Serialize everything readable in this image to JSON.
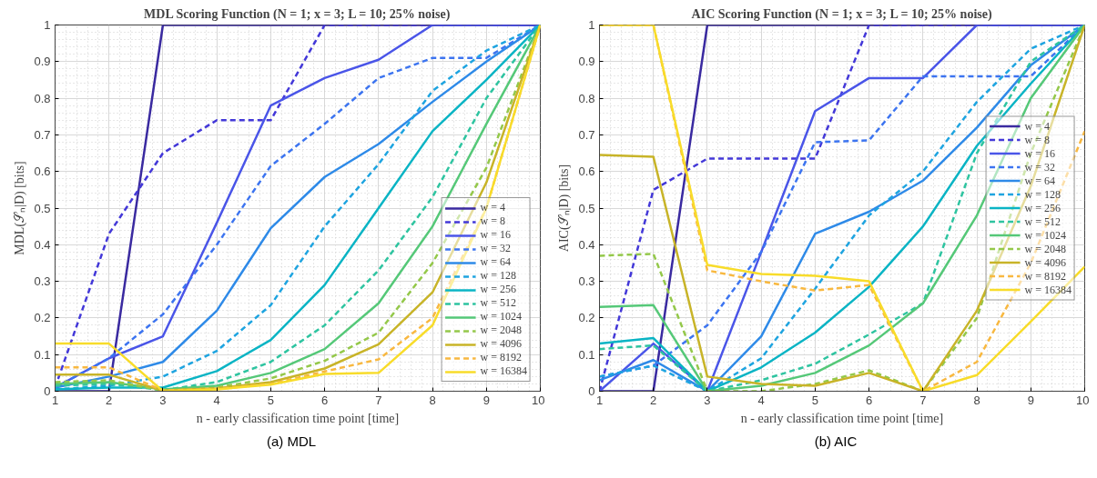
{
  "chart_data": [
    {
      "type": "line",
      "title": "MDL Scoring Function (N = 1; x = 3; L = 10; 25% noise)",
      "xlabel": "n - early classification time point [time]",
      "ylabel": "MDL(𝒮ₙ|D) [bits]",
      "annotations": [
        "(a)  MDL"
      ],
      "x": [
        1,
        2,
        3,
        4,
        5,
        6,
        7,
        8,
        9,
        10
      ],
      "xlim": [
        1,
        10
      ],
      "ylim": [
        0,
        1
      ],
      "xticks": [
        1,
        2,
        3,
        4,
        5,
        6,
        7,
        8,
        9,
        10
      ],
      "yticks": [
        0,
        0.1,
        0.2,
        0.3,
        0.4,
        0.5,
        0.6,
        0.7,
        0.8,
        0.9,
        1
      ],
      "grid": true,
      "legend": "bottom right",
      "series": [
        {
          "name": "w = 4",
          "color": "#3a2aa0",
          "line_style": "solid",
          "values": [
            0,
            0,
            1,
            1,
            1,
            1,
            1,
            1,
            1,
            1
          ]
        },
        {
          "name": "w = 8",
          "color": "#4338d8",
          "line_style": "dashed",
          "values": [
            0.01,
            0.43,
            0.65,
            0.74,
            0.74,
            1,
            1,
            1,
            1,
            1
          ]
        },
        {
          "name": "w = 16",
          "color": "#4a55e8",
          "line_style": "solid",
          "values": [
            0.01,
            0.09,
            0.15,
            0.46,
            0.78,
            0.855,
            0.905,
            1,
            1,
            1
          ]
        },
        {
          "name": "w = 32",
          "color": "#3c74f0",
          "line_style": "dashed",
          "values": [
            0.01,
            0.09,
            0.21,
            0.4,
            0.615,
            0.73,
            0.855,
            0.91,
            0.91,
            1
          ]
        },
        {
          "name": "w = 64",
          "color": "#2e8ae8",
          "line_style": "solid",
          "values": [
            0.01,
            0.04,
            0.08,
            0.22,
            0.445,
            0.585,
            0.675,
            0.79,
            0.9,
            1
          ]
        },
        {
          "name": "w = 128",
          "color": "#1ea4e0",
          "line_style": "dashed",
          "values": [
            0.005,
            0.015,
            0.04,
            0.11,
            0.235,
            0.45,
            0.62,
            0.82,
            0.93,
            1
          ]
        },
        {
          "name": "w = 256",
          "color": "#0ab4c4",
          "line_style": "solid",
          "values": [
            0.005,
            0.01,
            0.01,
            0.055,
            0.14,
            0.29,
            0.5,
            0.71,
            0.85,
            1
          ]
        },
        {
          "name": "w = 512",
          "color": "#2ec4a0",
          "line_style": "dashed",
          "values": [
            0.015,
            0.02,
            0.003,
            0.025,
            0.08,
            0.18,
            0.33,
            0.53,
            0.8,
            1
          ]
        },
        {
          "name": "w = 1024",
          "color": "#55c878",
          "line_style": "solid",
          "values": [
            0.02,
            0.025,
            0.005,
            0.015,
            0.05,
            0.115,
            0.24,
            0.45,
            0.73,
            1
          ]
        },
        {
          "name": "w = 2048",
          "color": "#94c84a",
          "line_style": "dashed",
          "values": [
            0.025,
            0.03,
            0.002,
            0.01,
            0.035,
            0.083,
            0.16,
            0.35,
            0.61,
            1
          ]
        },
        {
          "name": "w = 4096",
          "color": "#c8b428",
          "line_style": "solid",
          "values": [
            0.045,
            0.045,
            0.002,
            0.008,
            0.025,
            0.062,
            0.128,
            0.27,
            0.57,
            1
          ]
        },
        {
          "name": "w = 8192",
          "color": "#f8b840",
          "line_style": "dashed",
          "values": [
            0.065,
            0.065,
            0.002,
            0.006,
            0.02,
            0.054,
            0.087,
            0.2,
            0.5,
            1
          ]
        },
        {
          "name": "w = 16384",
          "color": "#f8dc2a",
          "line_style": "solid",
          "values": [
            0.13,
            0.13,
            0,
            0.005,
            0.018,
            0.047,
            0.05,
            0.18,
            0.5,
            1
          ]
        }
      ]
    },
    {
      "type": "line",
      "title": "AIC Scoring Function (N = 1; x = 3; L = 10; 25% noise)",
      "xlabel": "n - early classification time point [time]",
      "ylabel": "AIC(𝒮ₙ|D) [bits]",
      "annotations": [
        "(b)  AIC"
      ],
      "x": [
        1,
        2,
        3,
        4,
        5,
        6,
        7,
        8,
        9,
        10
      ],
      "xlim": [
        1,
        10
      ],
      "ylim": [
        0,
        1
      ],
      "xticks": [
        1,
        2,
        3,
        4,
        5,
        6,
        7,
        8,
        9,
        10
      ],
      "yticks": [
        0,
        0.1,
        0.2,
        0.3,
        0.4,
        0.5,
        0.6,
        0.7,
        0.8,
        0.9,
        1
      ],
      "grid": true,
      "legend": "right",
      "series": [
        {
          "name": "w = 4",
          "color": "#3a2aa0",
          "line_style": "solid",
          "values": [
            0,
            0,
            1,
            1,
            1,
            1,
            1,
            1,
            1,
            1
          ]
        },
        {
          "name": "w = 8",
          "color": "#4338d8",
          "line_style": "dashed",
          "values": [
            0,
            0.55,
            0.635,
            0.635,
            0.635,
            1,
            1,
            1,
            1,
            1
          ]
        },
        {
          "name": "w = 16",
          "color": "#4a55e8",
          "line_style": "solid",
          "values": [
            0,
            0.13,
            0,
            0.38,
            0.765,
            0.855,
            0.855,
            1,
            1,
            1
          ]
        },
        {
          "name": "w = 32",
          "color": "#3c74f0",
          "line_style": "dashed",
          "values": [
            0.04,
            0.07,
            0.18,
            0.38,
            0.68,
            0.685,
            0.86,
            0.86,
            0.86,
            1
          ]
        },
        {
          "name": "w = 64",
          "color": "#2e8ae8",
          "line_style": "solid",
          "values": [
            0.03,
            0.085,
            0,
            0.15,
            0.43,
            0.49,
            0.575,
            0.72,
            0.89,
            1
          ]
        },
        {
          "name": "w = 128",
          "color": "#1ea4e0",
          "line_style": "dashed",
          "values": [
            0.04,
            0.07,
            0,
            0.09,
            0.28,
            0.48,
            0.6,
            0.79,
            0.935,
            1
          ]
        },
        {
          "name": "w = 256",
          "color": "#0ab4c4",
          "line_style": "solid",
          "values": [
            0.13,
            0.145,
            0,
            0.065,
            0.16,
            0.285,
            0.45,
            0.67,
            0.84,
            1
          ]
        },
        {
          "name": "w = 512",
          "color": "#2ec4a0",
          "line_style": "dashed",
          "values": [
            0.115,
            0.125,
            0,
            0.03,
            0.075,
            0.155,
            0.24,
            0.65,
            0.9,
            1
          ]
        },
        {
          "name": "w = 1024",
          "color": "#55c878",
          "line_style": "solid",
          "values": [
            0.23,
            0.235,
            0,
            0.015,
            0.05,
            0.125,
            0.24,
            0.48,
            0.8,
            1
          ]
        },
        {
          "name": "w = 2048",
          "color": "#94c84a",
          "line_style": "dashed",
          "values": [
            0.37,
            0.375,
            0,
            0,
            0.02,
            0.057,
            0,
            0.2,
            0.65,
            1
          ]
        },
        {
          "name": "w = 4096",
          "color": "#c8b428",
          "line_style": "solid",
          "values": [
            0.645,
            0.64,
            0.04,
            0.02,
            0.015,
            0.05,
            0,
            0.22,
            0.56,
            1
          ]
        },
        {
          "name": "w = 8192",
          "color": "#f8b840",
          "line_style": "dashed",
          "values": [
            1,
            1,
            0.33,
            0.3,
            0.275,
            0.29,
            0,
            0.08,
            0.35,
            0.71
          ]
        },
        {
          "name": "w = 16384",
          "color": "#f8dc2a",
          "line_style": "solid",
          "values": [
            1,
            1,
            0.345,
            0.32,
            0.315,
            0.3,
            0,
            0.044,
            0.19,
            0.34
          ]
        }
      ]
    }
  ]
}
